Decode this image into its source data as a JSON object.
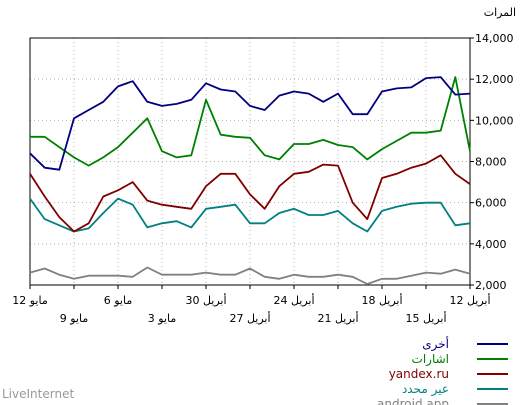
{
  "brand": "LiveInternet",
  "chart_data": {
    "type": "line",
    "ylabel": "المرات",
    "ylim": [
      2000,
      14000
    ],
    "y_ticks": [
      2000,
      4000,
      6000,
      8000,
      10000,
      12000,
      14000
    ],
    "y_tick_labels": [
      "2,000",
      "4,000",
      "6,000",
      "8,000",
      "10,000",
      "12,000",
      "14,000"
    ],
    "grid": true,
    "legend_position": "bottom-right",
    "x_labels_upper": [
      {
        "i": 0,
        "label": "12 أبريل"
      },
      {
        "i": 6,
        "label": "18 أبريل"
      },
      {
        "i": 12,
        "label": "24 أبريل"
      },
      {
        "i": 18,
        "label": "30 أبريل"
      },
      {
        "i": 24,
        "label": "6 مايو"
      },
      {
        "i": 30,
        "label": "12 مايو"
      }
    ],
    "x_labels_lower": [
      {
        "i": 3,
        "label": "15 أبريل"
      },
      {
        "i": 9,
        "label": "21 أبريل"
      },
      {
        "i": 15,
        "label": "27 أبريل"
      },
      {
        "i": 21,
        "label": "3 مايو"
      },
      {
        "i": 27,
        "label": "9 مايو"
      }
    ],
    "series": [
      {
        "name": "أخرى",
        "color": "#000080",
        "values": [
          11300,
          11250,
          12100,
          12050,
          11600,
          11550,
          11400,
          10300,
          10300,
          11300,
          10900,
          11300,
          11400,
          11200,
          10500,
          10700,
          11400,
          11500,
          11800,
          11000,
          10800,
          10700,
          10900,
          11900,
          11650,
          10900,
          10500,
          10100,
          7600,
          7700,
          8400
        ]
      },
      {
        "name": "اشارات",
        "color": "#008000",
        "values": [
          8500,
          12100,
          9500,
          9400,
          9400,
          9000,
          8600,
          8100,
          8700,
          8800,
          9050,
          8850,
          8850,
          8100,
          8300,
          9150,
          9200,
          9300,
          11000,
          8300,
          8200,
          8500,
          10100,
          9400,
          8700,
          8200,
          7800,
          8200,
          8700,
          9200,
          9200
        ]
      },
      {
        "name": "yandex.ru",
        "color": "#800000",
        "values": [
          6900,
          7400,
          8300,
          7900,
          7700,
          7400,
          7200,
          5200,
          6000,
          7800,
          7850,
          7500,
          7400,
          6800,
          5700,
          6400,
          7400,
          7400,
          6800,
          5700,
          5800,
          5900,
          6100,
          7000,
          6600,
          6300,
          5000,
          4600,
          5300,
          6300,
          7400
        ]
      },
      {
        "name": "عير محدد",
        "color": "#008080",
        "values": [
          5000,
          4900,
          6000,
          6000,
          5950,
          5800,
          5600,
          4600,
          5000,
          5600,
          5400,
          5400,
          5700,
          5500,
          5000,
          5000,
          5900,
          5800,
          5700,
          4800,
          5100,
          5000,
          4800,
          5900,
          6200,
          5500,
          4750,
          4600,
          4900,
          5200,
          6200
        ]
      },
      {
        "name": "android.app",
        "color": "#808080",
        "values": [
          2550,
          2750,
          2550,
          2600,
          2450,
          2300,
          2300,
          2050,
          2400,
          2500,
          2400,
          2400,
          2500,
          2300,
          2400,
          2800,
          2500,
          2500,
          2600,
          2500,
          2500,
          2500,
          2850,
          2400,
          2450,
          2450,
          2450,
          2300,
          2500,
          2800,
          2600
        ]
      }
    ]
  }
}
